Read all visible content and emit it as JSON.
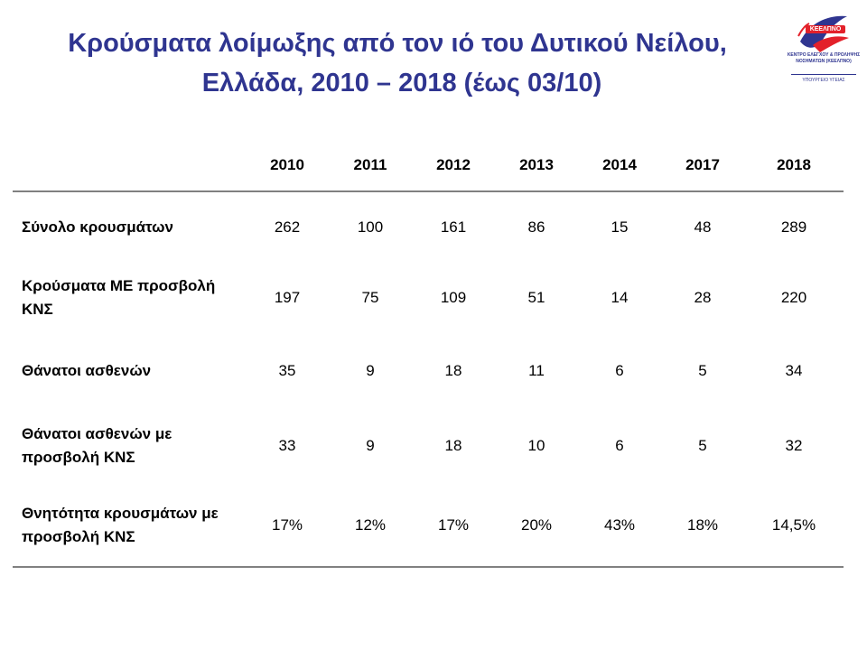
{
  "title": {
    "line1": "Κρούσματα λοίμωξης από τον ιό του Δυτικού Νείλου,",
    "line2": "Ελλάδα, 2010 – 2018 (έως 03/10)"
  },
  "logo": {
    "name": "ΚΕΕΛΠΝΟ",
    "subtitle": "ΚΕΝΤΡΟ ΕΛΕΓΧΟΥ & ΠΡΟΛΗΨΗΣ ΝΟΣΗΜΑΤΩΝ (ΚΕΕΛΠΝΟ)",
    "ministry": "ΥΠΟΥΡΓΕΙΟ ΥΓΕΙΑΣ",
    "colors": {
      "red": "#e3212a",
      "blue": "#2f3590"
    }
  },
  "table": {
    "columns": [
      "2010",
      "2011",
      "2012",
      "2013",
      "2014",
      "2017",
      "2018"
    ],
    "rows": [
      {
        "label": "Σύνολο κρουσμάτων",
        "values": [
          "262",
          "100",
          "161",
          "86",
          "15",
          "48",
          "289"
        ]
      },
      {
        "label": "Κρούσματα ΜΕ προσβολή ΚΝΣ",
        "values": [
          "197",
          "75",
          "109",
          "51",
          "14",
          "28",
          "220"
        ]
      },
      {
        "label": "Θάνατοι ασθενών",
        "values": [
          "35",
          "9",
          "18",
          "11",
          "6",
          "5",
          "34"
        ]
      },
      {
        "label": "Θάνατοι ασθενών με προσβολή ΚΝΣ",
        "values": [
          "33",
          "9",
          "18",
          "10",
          "6",
          "5",
          "32"
        ]
      },
      {
        "label": "Θνητότητα κρουσμάτων με προσβολή ΚΝΣ",
        "values": [
          "17%",
          "12%",
          "17%",
          "20%",
          "43%",
          "18%",
          "14,5%"
        ]
      }
    ]
  }
}
